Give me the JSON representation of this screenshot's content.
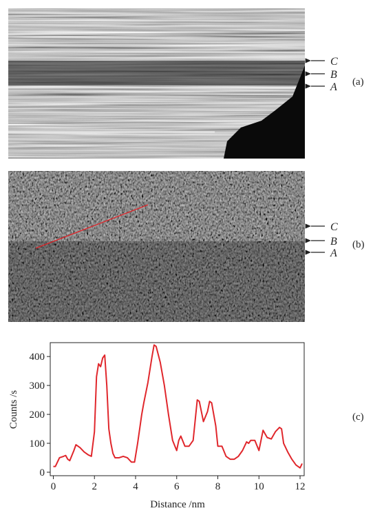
{
  "figure": {
    "panel_a": {
      "markers": [
        "C",
        "B",
        "A"
      ],
      "label": "(a)"
    },
    "panel_b": {
      "markers": [
        "C",
        "B",
        "A"
      ],
      "label": "(b)"
    },
    "panel_c": {
      "label": "(c)"
    }
  },
  "chart_data": {
    "type": "line",
    "xlabel": "Distance /nm",
    "ylabel": "Counts /s",
    "color": "#e0262b",
    "x": [
      0,
      0.1,
      0.3,
      0.5,
      0.6,
      0.7,
      0.8,
      1.0,
      1.1,
      1.3,
      1.5,
      1.7,
      1.85,
      2.0,
      2.1,
      2.2,
      2.3,
      2.4,
      2.5,
      2.6,
      2.7,
      2.8,
      2.9,
      3.0,
      3.2,
      3.4,
      3.6,
      3.8,
      3.95,
      4.1,
      4.3,
      4.4,
      4.6,
      4.8,
      4.9,
      5.0,
      5.2,
      5.4,
      5.6,
      5.8,
      6.0,
      6.1,
      6.2,
      6.4,
      6.6,
      6.8,
      7.0,
      7.1,
      7.3,
      7.5,
      7.6,
      7.7,
      7.9,
      8.0,
      8.2,
      8.4,
      8.6,
      8.8,
      9.0,
      9.2,
      9.4,
      9.5,
      9.6,
      9.8,
      10.0,
      10.2,
      10.4,
      10.6,
      10.8,
      11.0,
      11.1,
      11.2,
      11.4,
      11.6,
      11.8,
      11.9,
      12.0,
      12.1
    ],
    "values": [
      20,
      20,
      50,
      55,
      58,
      45,
      40,
      75,
      95,
      85,
      70,
      60,
      55,
      140,
      330,
      375,
      365,
      395,
      405,
      300,
      150,
      100,
      65,
      50,
      50,
      55,
      50,
      35,
      35,
      100,
      200,
      240,
      310,
      400,
      440,
      435,
      380,
      300,
      200,
      110,
      75,
      110,
      125,
      90,
      90,
      110,
      250,
      245,
      175,
      210,
      245,
      240,
      160,
      90,
      90,
      55,
      45,
      45,
      55,
      75,
      105,
      100,
      110,
      110,
      75,
      145,
      120,
      115,
      140,
      155,
      150,
      100,
      70,
      45,
      25,
      20,
      15,
      30
    ],
    "xlim": [
      -0.15,
      12.2
    ],
    "ylim": [
      -12,
      448
    ],
    "xticks": [
      0,
      2,
      4,
      6,
      8,
      10,
      12
    ],
    "yticks": [
      0,
      100,
      200,
      300,
      400
    ]
  }
}
